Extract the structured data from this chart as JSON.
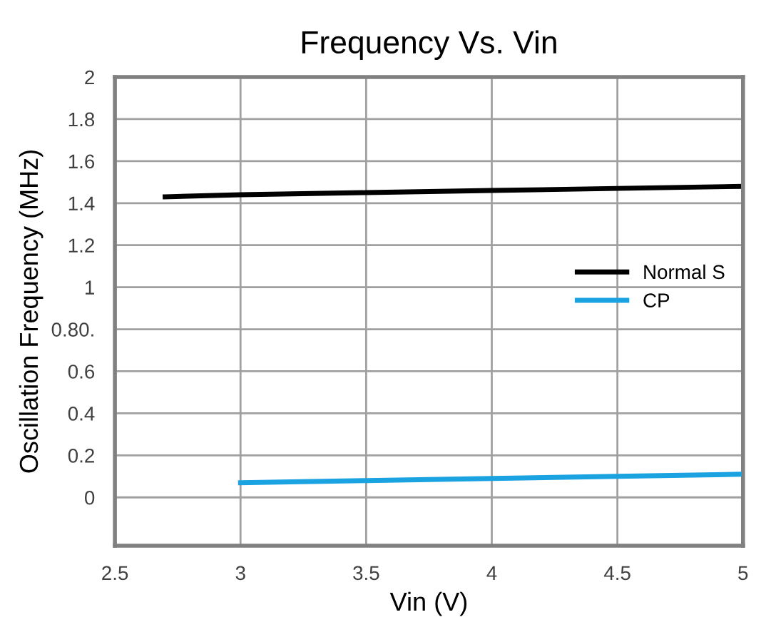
{
  "chart_data": {
    "type": "line",
    "title": "Frequency Vs. Vin",
    "xlabel": "Vin (V)",
    "ylabel": "Oscillation Frequency (MHz)",
    "series": [
      {
        "name": "Normal S",
        "color": "#000000",
        "x": [
          2.7,
          3.0,
          3.5,
          4.0,
          4.5,
          5.0
        ],
        "values": [
          1.43,
          1.44,
          1.45,
          1.46,
          1.47,
          1.48
        ]
      },
      {
        "name": "CP",
        "color": "#1aa3e0",
        "x": [
          3.0,
          3.5,
          4.0,
          4.5,
          5.0
        ],
        "values": [
          0.07,
          0.08,
          0.09,
          0.1,
          0.11
        ]
      }
    ],
    "xlim": [
      2.5,
      5
    ],
    "xticks": [
      2.5,
      3,
      3.5,
      4,
      4.5,
      5
    ],
    "ylim": [
      -0.23,
      2
    ],
    "yticks": [
      0,
      0.2,
      0.4,
      0.6,
      {
        "value": 0.8,
        "label": "0.80."
      },
      1,
      1.2,
      1.4,
      1.6,
      1.8,
      2
    ],
    "grid": true,
    "legend": "right",
    "marker": "none",
    "line_style": "solid"
  }
}
